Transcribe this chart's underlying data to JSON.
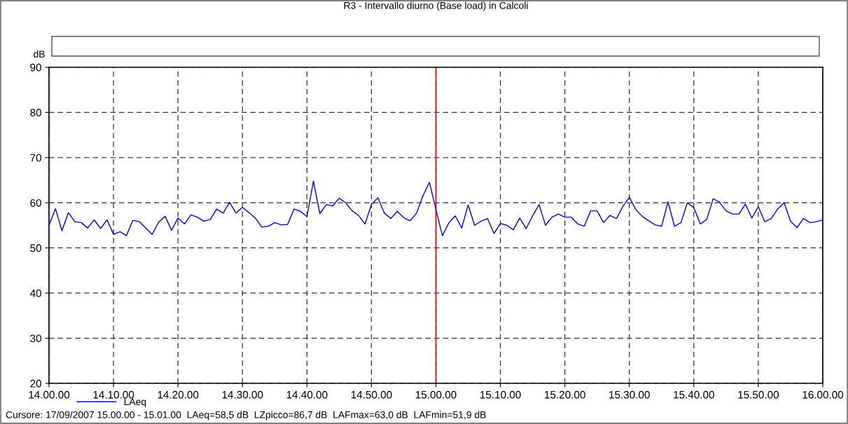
{
  "chart_data": {
    "type": "line",
    "title": "R3 - Intervallo diurno (Base load) in Calcoli",
    "ylabel": "dB",
    "x": [
      "2007-09-17T14:00",
      "2007-09-17T14:01",
      "2007-09-17T14:02",
      "2007-09-17T14:03",
      "2007-09-17T14:04",
      "2007-09-17T14:05",
      "2007-09-17T14:06",
      "2007-09-17T14:07",
      "2007-09-17T14:08",
      "2007-09-17T14:09",
      "2007-09-17T14:10",
      "2007-09-17T14:11",
      "2007-09-17T14:12",
      "2007-09-17T14:13",
      "2007-09-17T14:14",
      "2007-09-17T14:15",
      "2007-09-17T14:16",
      "2007-09-17T14:17",
      "2007-09-17T14:18",
      "2007-09-17T14:19",
      "2007-09-17T14:20",
      "2007-09-17T14:21",
      "2007-09-17T14:22",
      "2007-09-17T14:23",
      "2007-09-17T14:24",
      "2007-09-17T14:25",
      "2007-09-17T14:26",
      "2007-09-17T14:27",
      "2007-09-17T14:28",
      "2007-09-17T14:29",
      "2007-09-17T14:30",
      "2007-09-17T14:31",
      "2007-09-17T14:32",
      "2007-09-17T14:33",
      "2007-09-17T14:34",
      "2007-09-17T14:35",
      "2007-09-17T14:36",
      "2007-09-17T14:37",
      "2007-09-17T14:38",
      "2007-09-17T14:39",
      "2007-09-17T14:40",
      "2007-09-17T14:41",
      "2007-09-17T14:42",
      "2007-09-17T14:43",
      "2007-09-17T14:44",
      "2007-09-17T14:45",
      "2007-09-17T14:46",
      "2007-09-17T14:47",
      "2007-09-17T14:48",
      "2007-09-17T14:49",
      "2007-09-17T14:50",
      "2007-09-17T14:51",
      "2007-09-17T14:52",
      "2007-09-17T14:53",
      "2007-09-17T14:54",
      "2007-09-17T14:55",
      "2007-09-17T14:56",
      "2007-09-17T14:57",
      "2007-09-17T14:58",
      "2007-09-17T14:59",
      "2007-09-17T15:00",
      "2007-09-17T15:01",
      "2007-09-17T15:02",
      "2007-09-17T15:03",
      "2007-09-17T15:04",
      "2007-09-17T15:05",
      "2007-09-17T15:06",
      "2007-09-17T15:07",
      "2007-09-17T15:08",
      "2007-09-17T15:09",
      "2007-09-17T15:10",
      "2007-09-17T15:11",
      "2007-09-17T15:12",
      "2007-09-17T15:13",
      "2007-09-17T15:14",
      "2007-09-17T15:15",
      "2007-09-17T15:16",
      "2007-09-17T15:17",
      "2007-09-17T15:18",
      "2007-09-17T15:19",
      "2007-09-17T15:20",
      "2007-09-17T15:21",
      "2007-09-17T15:22",
      "2007-09-17T15:23",
      "2007-09-17T15:24",
      "2007-09-17T15:25",
      "2007-09-17T15:26",
      "2007-09-17T15:27",
      "2007-09-17T15:28",
      "2007-09-17T15:29",
      "2007-09-17T15:30",
      "2007-09-17T15:31",
      "2007-09-17T15:32",
      "2007-09-17T15:33",
      "2007-09-17T15:34",
      "2007-09-17T15:35",
      "2007-09-17T15:36",
      "2007-09-17T15:37",
      "2007-09-17T15:38",
      "2007-09-17T15:39",
      "2007-09-17T15:40",
      "2007-09-17T15:41",
      "2007-09-17T15:42",
      "2007-09-17T15:43",
      "2007-09-17T15:44",
      "2007-09-17T15:45",
      "2007-09-17T15:46",
      "2007-09-17T15:47",
      "2007-09-17T15:48",
      "2007-09-17T15:49",
      "2007-09-17T15:50",
      "2007-09-17T15:51",
      "2007-09-17T15:52",
      "2007-09-17T15:53",
      "2007-09-17T15:54",
      "2007-09-17T15:55",
      "2007-09-17T15:56",
      "2007-09-17T15:57",
      "2007-09-17T15:58",
      "2007-09-17T15:59",
      "2007-09-17T16:00"
    ],
    "series": [
      {
        "name": "LAeq",
        "color": "#0000ff",
        "values": [
          55,
          58.7,
          53.8,
          57.8,
          55.8,
          55.6,
          54.4,
          56.2,
          54.3,
          56.2,
          53,
          53.6,
          52.7,
          56.1,
          55.8,
          54.4,
          53,
          55.7,
          57,
          53.9,
          56.6,
          55.3,
          57.3,
          56.8,
          55.9,
          56.3,
          58.6,
          57.7,
          60.1,
          57.7,
          59,
          57.8,
          56.6,
          54.6,
          54.8,
          55.6,
          55.1,
          55.2,
          58.6,
          58.1,
          56.9,
          64.8,
          57.6,
          59.6,
          59.3,
          61,
          60,
          58.2,
          57.2,
          55.3,
          59.6,
          61.1,
          57.7,
          56.5,
          58.1,
          56.7,
          56,
          57.7,
          61.6,
          64.5,
          58.5,
          52.7,
          55.5,
          57.1,
          54.4,
          59.5,
          55,
          55.9,
          56.5,
          53.2,
          55.4,
          55,
          54,
          56.6,
          54.3,
          57.1,
          59.6,
          55,
          56.8,
          57.5,
          56.8,
          56.8,
          55.3,
          54.8,
          58.2,
          58.2,
          55.6,
          57.2,
          56.5,
          59.2,
          61.2,
          58.5,
          57,
          56,
          55.1,
          54.8,
          60.2,
          54.8,
          55.6,
          60,
          58.9,
          55.3,
          56.3,
          60.9,
          60.1,
          58.2,
          57.5,
          57.5,
          59.7,
          56.6,
          59.1,
          55.8,
          56.5,
          58.6,
          60,
          55.9,
          54.5,
          56.5,
          55.6,
          55.8,
          56.2
        ]
      }
    ],
    "xlim": [
      "2007-09-17T14:00",
      "2007-09-17T16:00"
    ],
    "xticks": [
      {
        "value": "2007-09-17T14:00",
        "label": "14.00.00"
      },
      {
        "value": "2007-09-17T14:10",
        "label": "14.10.00"
      },
      {
        "value": "2007-09-17T14:20",
        "label": "14.20.00"
      },
      {
        "value": "2007-09-17T14:30",
        "label": "14.30.00"
      },
      {
        "value": "2007-09-17T14:40",
        "label": "14.40.00"
      },
      {
        "value": "2007-09-17T14:50",
        "label": "14.50.00"
      },
      {
        "value": "2007-09-17T15:00",
        "label": "15.00.00"
      },
      {
        "value": "2007-09-17T15:10",
        "label": "15.10.00"
      },
      {
        "value": "2007-09-17T15:20",
        "label": "15.20.00"
      },
      {
        "value": "2007-09-17T15:30",
        "label": "15.30.00"
      },
      {
        "value": "2007-09-17T15:40",
        "label": "15.40.00"
      },
      {
        "value": "2007-09-17T15:50",
        "label": "15.50.00"
      },
      {
        "value": "2007-09-17T16:00",
        "label": "16.00.00"
      }
    ],
    "ylim": [
      20,
      90
    ],
    "yticks": [
      20,
      30,
      40,
      50,
      60,
      70,
      80,
      90
    ],
    "ref_lines": [
      {
        "axis": "x",
        "value": "2007-09-17T15:00",
        "color": "#ff0000"
      }
    ],
    "grid": true,
    "legend": "bottom left",
    "marker": "none",
    "line_style": "solid",
    "annotations": [
      "Cursore: 17/09/2007 15.00.00 - 15.01.00  LAeq=58,5 dB  LZpicco=86,7 dB  LAFmax=63,0 dB  LAFmin=51,9 dB"
    ]
  }
}
